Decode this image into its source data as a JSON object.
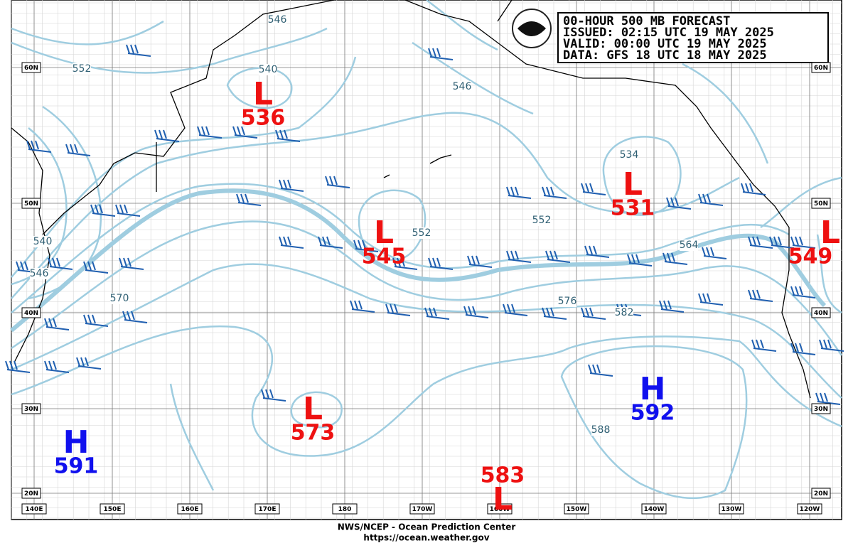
{
  "header": {
    "lines": [
      "00-HOUR 500 MB FORECAST",
      "ISSUED: 02:15 UTC 19 MAY 2025",
      "VALID:  00:00 UTC 19 MAY 2025",
      "DATA:  GFS 18 UTC 18 MAY 2025"
    ]
  },
  "centers": [
    {
      "type": "L",
      "value": 536
    },
    {
      "type": "L",
      "value": 545
    },
    {
      "type": "L",
      "value": 531
    },
    {
      "type": "L",
      "value": 549
    },
    {
      "type": "L",
      "value": 573
    },
    {
      "type": "L",
      "value": 583
    },
    {
      "type": "H",
      "value": 592
    },
    {
      "type": "H",
      "value": 591
    }
  ],
  "contour_labels": [
    "546",
    "552",
    "540",
    "546",
    "534",
    "552",
    "552",
    "564",
    "576",
    "582",
    "570",
    "588",
    "540",
    "546"
  ],
  "longitudes": [
    "140E",
    "150E",
    "160E",
    "170E",
    "180",
    "170W",
    "160W",
    "150W",
    "140W",
    "130W",
    "120W"
  ],
  "latitudes": [
    "60N",
    "50N",
    "40N",
    "30N",
    "20N"
  ],
  "footer": [
    "NWS/NCEP - Ocean Prediction Center",
    "https://ocean.weather.gov"
  ]
}
